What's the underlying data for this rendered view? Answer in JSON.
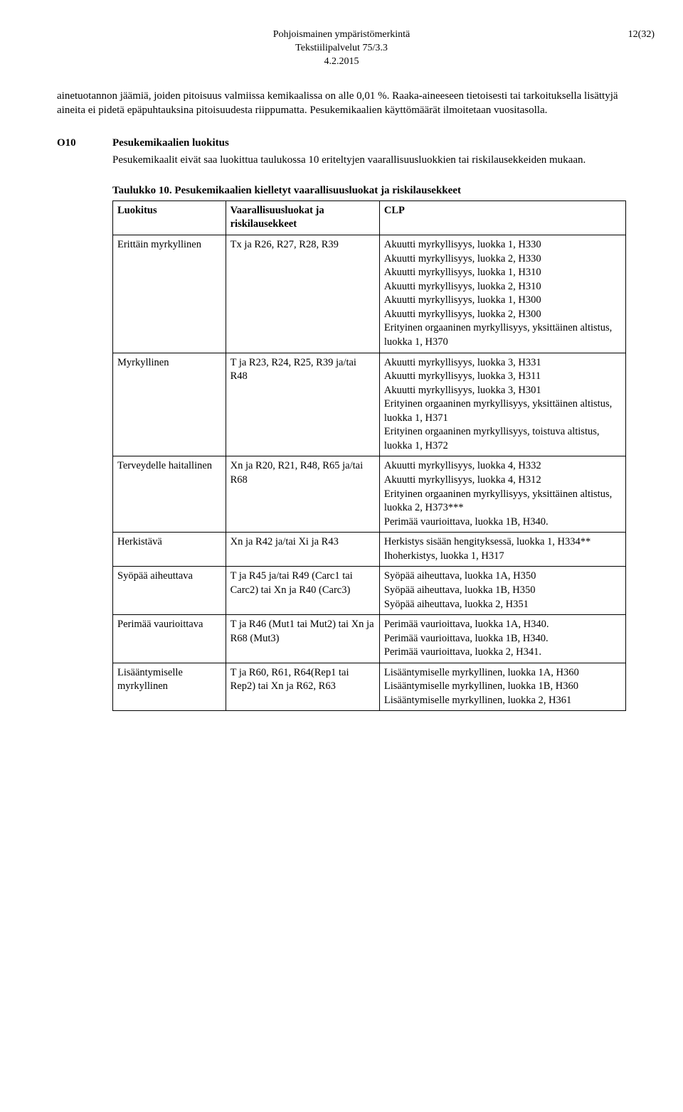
{
  "header": {
    "line1": "Pohjoismainen ympäristömerkintä",
    "line2": "Tekstiilipalvelut 75/3.3",
    "line3": "4.2.2015",
    "pageNum": "12(32)"
  },
  "intro": "ainetuotannon jäämiä, joiden pitoisuus valmiissa kemikaalissa on alle 0,01 %. Raaka-aineeseen tietoisesti tai tarkoituksella lisättyjä aineita ei pidetä epäpuhtauksina pitoisuudesta riippumatta. Pesukemikaalien käyttömäärät ilmoitetaan vuositasolla.",
  "section": {
    "code": "O10",
    "title": "Pesukemikaalien luokitus",
    "body": "Pesukemikaalit eivät saa luokittua taulukossa 10 eriteltyjen vaarallisuusluokkien tai riskilausekkeiden mukaan."
  },
  "table": {
    "title": "Taulukko 10. Pesukemikaalien kielletyt vaarallisuusluokat ja riskilausekkeet",
    "headers": [
      "Luokitus",
      "Vaarallisuusluokat ja riskilausekkeet",
      "CLP"
    ],
    "rows": [
      {
        "c1": "Erittäin myrkyllinen",
        "c2": "Tx ja R26, R27, R28, R39",
        "c3": [
          "Akuutti myrkyllisyys, luokka 1, H330",
          "Akuutti myrkyllisyys, luokka 2, H330",
          "Akuutti myrkyllisyys, luokka 1, H310",
          "Akuutti myrkyllisyys, luokka 2, H310",
          "Akuutti myrkyllisyys, luokka 1, H300",
          "Akuutti myrkyllisyys, luokka 2, H300",
          "Erityinen orgaaninen myrkyllisyys, yksittäinen altistus, luokka 1, H370"
        ]
      },
      {
        "c1": "Myrkyllinen",
        "c2": "T ja R23, R24, R25, R39 ja/tai R48",
        "c3": [
          "Akuutti myrkyllisyys, luokka 3, H331",
          "Akuutti myrkyllisyys, luokka 3, H311",
          "Akuutti myrkyllisyys, luokka 3, H301",
          "Erityinen orgaaninen myrkyllisyys, yksittäinen altistus, luokka 1, H371",
          "Erityinen orgaaninen myrkyllisyys, toistuva altistus, luokka 1, H372"
        ]
      },
      {
        "c1": "Terveydelle haitallinen",
        "c2": "Xn ja R20, R21, R48, R65 ja/tai R68",
        "c3": [
          "Akuutti myrkyllisyys, luokka 4, H332",
          "Akuutti myrkyllisyys, luokka 4, H312",
          "Erityinen orgaaninen myrkyllisyys, yksittäinen altistus, luokka 2, H373***",
          "Perimää vaurioittava, luokka 1B, H340."
        ]
      },
      {
        "c1": "Herkistävä",
        "c2": "Xn ja R42 ja/tai Xi ja R43",
        "c3": [
          "Herkistys sisään hengityksessä, luokka 1, H334**",
          "Ihoherkistys, luokka 1, H317"
        ]
      },
      {
        "c1": "Syöpää aiheuttava",
        "c2": "T ja R45 ja/tai R49 (Carc1 tai Carc2) tai Xn ja R40 (Carc3)",
        "c3": [
          "Syöpää aiheuttava, luokka 1A, H350",
          "Syöpää aiheuttava, luokka 1B, H350",
          "Syöpää aiheuttava, luokka 2, H351"
        ]
      },
      {
        "c1": "Perimää vaurioittava",
        "c2": "T ja R46 (Mut1 tai Mut2) tai Xn ja R68 (Mut3)",
        "c3": [
          "Perimää vaurioittava, luokka 1A, H340.",
          "Perimää vaurioittava, luokka 1B, H340.",
          "Perimää vaurioittava, luokka 2, H341."
        ]
      },
      {
        "c1": "Lisääntymiselle myrkyllinen",
        "c2": "T ja R60, R61, R64(Rep1 tai Rep2) tai Xn ja R62, R63",
        "c3": [
          "Lisääntymiselle myrkyllinen, luokka 1A, H360",
          "Lisääntymiselle myrkyllinen, luokka 1B, H360",
          "Lisääntymiselle myrkyllinen, luokka 2, H361"
        ]
      }
    ]
  }
}
